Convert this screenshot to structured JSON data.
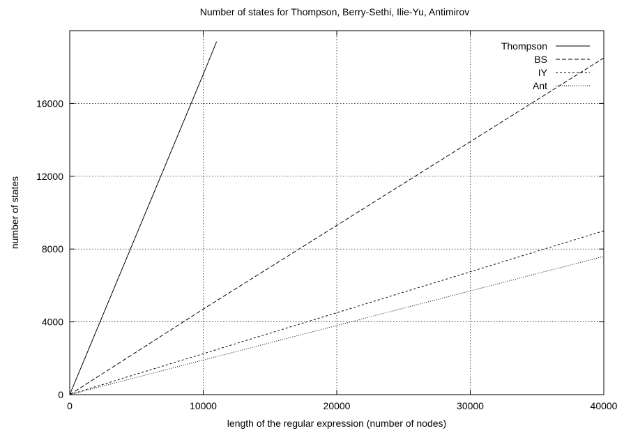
{
  "chart_data": {
    "type": "line",
    "title": "Number of states for Thompson, Berry-Sethi, Ilie-Yu, Antimirov",
    "xlabel": "length of the regular expression (number of nodes)",
    "ylabel": "number of states",
    "xlim": [
      0,
      40000
    ],
    "ylim": [
      0,
      20000
    ],
    "xticks": [
      0,
      10000,
      20000,
      30000,
      40000
    ],
    "yticks": [
      0,
      4000,
      8000,
      12000,
      16000
    ],
    "grid": true,
    "legend_position": "top-right",
    "series": [
      {
        "name": "Thompson",
        "dash": "none",
        "x": [
          0,
          5000,
          10000,
          11000
        ],
        "y": [
          0,
          8800,
          17600,
          19400
        ]
      },
      {
        "name": "BS",
        "dash": "6 3",
        "x": [
          0,
          5000,
          10000,
          15000,
          20000,
          25000,
          30000,
          35000,
          40000
        ],
        "y": [
          0,
          2350,
          4700,
          7000,
          9300,
          11600,
          13900,
          16200,
          18500
        ]
      },
      {
        "name": "IY",
        "dash": "3 3",
        "x": [
          0,
          5000,
          10000,
          15000,
          20000,
          25000,
          30000,
          35000,
          40000
        ],
        "y": [
          0,
          1130,
          2250,
          3380,
          4500,
          5630,
          6750,
          7880,
          9000
        ]
      },
      {
        "name": "Ant",
        "dash": "1 2",
        "x": [
          0,
          5000,
          10000,
          15000,
          20000,
          25000,
          30000,
          35000,
          40000
        ],
        "y": [
          0,
          950,
          1900,
          2850,
          3800,
          4750,
          5700,
          6650,
          7600
        ]
      }
    ]
  }
}
